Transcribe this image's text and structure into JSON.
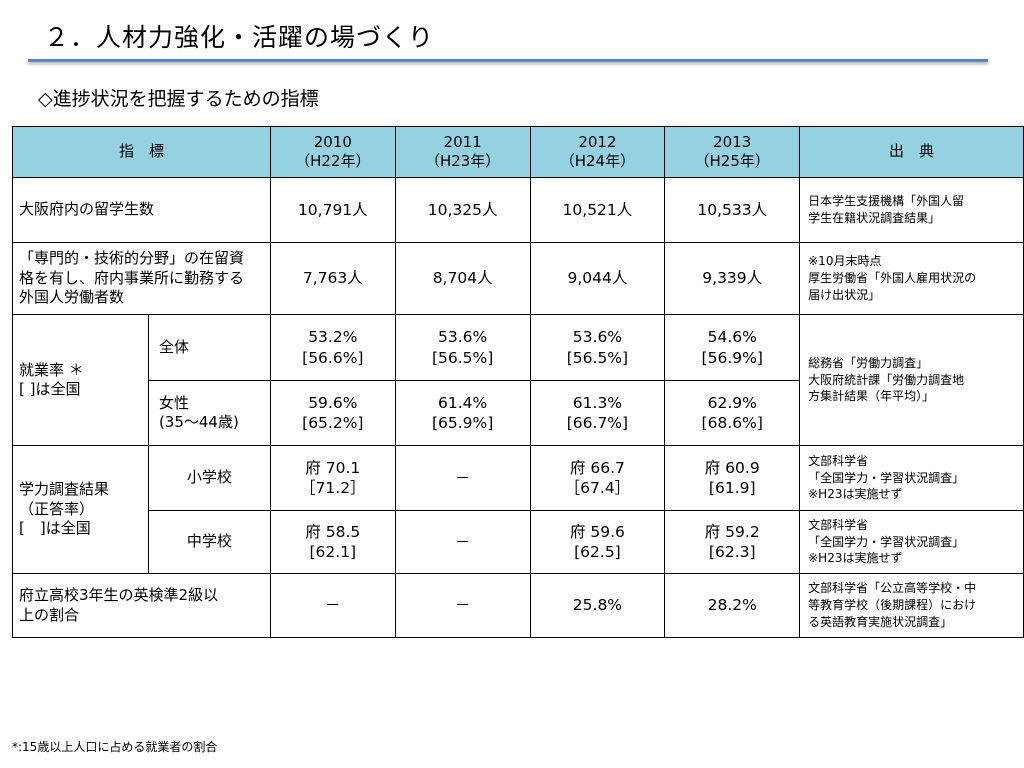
{
  "title": "２．人材力強化・活躍の場づくり",
  "subtitle": "◇進捗状況を把握するための指標",
  "table": {
    "headers": {
      "indicator": "指　標",
      "years": [
        {
          "year": "2010",
          "era": "（H22年）"
        },
        {
          "year": "2011",
          "era": "（H23年）"
        },
        {
          "year": "2012",
          "era": "（H24年）"
        },
        {
          "year": "2013",
          "era": "（H25年）"
        }
      ],
      "source": "出　典"
    },
    "rows": {
      "foreign_students": {
        "label": "大阪府内の留学生数",
        "values": [
          "10,791人",
          "10,325人",
          "10,521人",
          "10,533人"
        ],
        "source": [
          "日本学生支援機構「外国人留",
          "学生在籍状況調査結果」"
        ]
      },
      "foreign_workers": {
        "label": [
          "「専門的・技術的分野」の在留資",
          "格を有し、府内事業所に勤務する",
          "外国人労働者数"
        ],
        "values": [
          "7,763人",
          "8,704人",
          "9,044人",
          "9,339人"
        ],
        "source": [
          "※10月末時点",
          "厚生労働省「外国人雇用状況の",
          "届け出状況」"
        ]
      },
      "employment_rate": {
        "label": [
          "就業率 ＊",
          "[ ]は全国"
        ],
        "source": [
          "総務省「労働力調査」",
          "大阪府統計課「労働力調査地",
          "方集計結果（年平均）」"
        ],
        "total": {
          "label": "全体",
          "values": [
            {
              "v": "53.2%",
              "n": "[56.6%]"
            },
            {
              "v": "53.6%",
              "n": "[56.5%]"
            },
            {
              "v": "53.6%",
              "n": "[56.5%]"
            },
            {
              "v": "54.6%",
              "n": "[56.9%]"
            }
          ]
        },
        "women": {
          "label": [
            "女性",
            "(35〜44歳)"
          ],
          "values": [
            {
              "v": "59.6%",
              "n": "[65.2%]"
            },
            {
              "v": "61.4%",
              "n": "[65.9%]"
            },
            {
              "v": "61.3%",
              "n": "[66.7%]"
            },
            {
              "v": "62.9%",
              "n": "[68.6%]"
            }
          ]
        }
      },
      "academic": {
        "label": [
          "学力調査結果",
          "（正答率）",
          "[　]は全国"
        ],
        "elementary": {
          "label": "小学校",
          "values": [
            {
              "v": "府  70.1",
              "n": "［71.2］"
            },
            {
              "v": "－",
              "n": ""
            },
            {
              "v": "府  66.7",
              "n": "［67.4］"
            },
            {
              "v": "府  60.9",
              "n": "[61.9]"
            }
          ],
          "source": [
            "文部科学省",
            "「全国学力・学習状況調査」",
            "※H23は実施せず"
          ]
        },
        "junior_high": {
          "label": "中学校",
          "values": [
            {
              "v": "府  58.5",
              "n": "[62.1]"
            },
            {
              "v": "－",
              "n": ""
            },
            {
              "v": "府  59.6",
              "n": "[62.5]"
            },
            {
              "v": "府  59.2",
              "n": "[62.3]"
            }
          ],
          "source": [
            "文部科学省",
            "「全国学力・学習状況調査」",
            "※H23は実施せず"
          ]
        }
      },
      "english": {
        "label": [
          "府立高校3年生の英検準2級以",
          "上の割合"
        ],
        "values": [
          "－",
          "－",
          "25.8%",
          "28.2%"
        ],
        "source": [
          "文部科学省「公立高等学校・中",
          "等教育学校（後期課程）におけ",
          "る英語教育実施状況調査」"
        ]
      }
    }
  },
  "footnote": "*:15歳以上人口に占める就業者の割合"
}
